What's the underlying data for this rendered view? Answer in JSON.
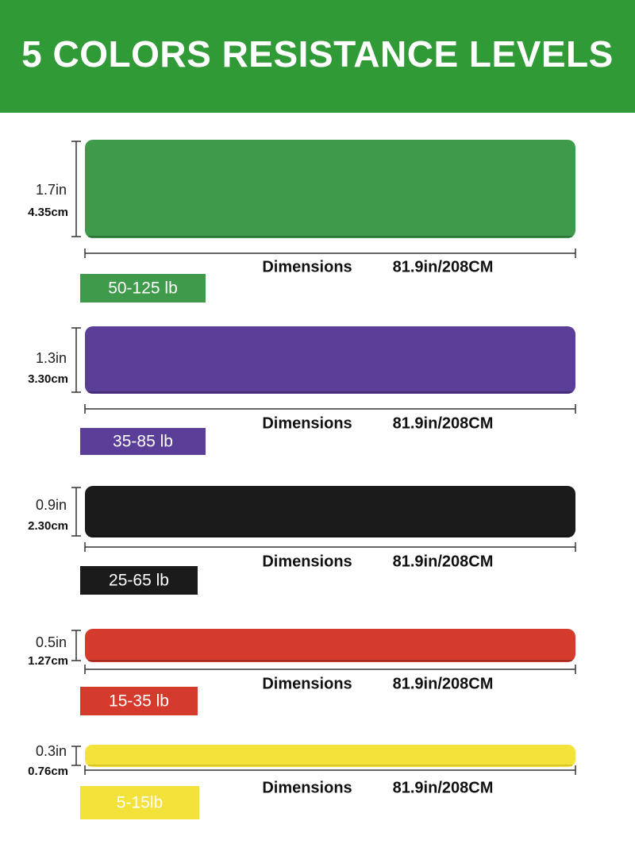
{
  "header": {
    "title": "5 COLORS RESISTANCE LEVELS"
  },
  "bands": [
    {
      "width_in": "1.7in",
      "width_cm": "4.35cm",
      "dimensions_label": "Dimensions",
      "dimensions_value": "81.9in/208CM",
      "resistance": "50-125 lb",
      "color": "#3f9a4b"
    },
    {
      "width_in": "1.3in",
      "width_cm": "3.30cm",
      "dimensions_label": "Dimensions",
      "dimensions_value": "81.9in/208CM",
      "resistance": "35-85 lb",
      "color": "#5a3e97"
    },
    {
      "width_in": "0.9in",
      "width_cm": "2.30cm",
      "dimensions_label": "Dimensions",
      "dimensions_value": "81.9in/208CM",
      "resistance": "25-65 lb",
      "color": "#1b1b1b"
    },
    {
      "width_in": "0.5in",
      "width_cm": "1.27cm",
      "dimensions_label": "Dimensions",
      "dimensions_value": "81.9in/208CM",
      "resistance": "15-35 lb",
      "color": "#d43b2d"
    },
    {
      "width_in": "0.3in",
      "width_cm": "0.76cm",
      "dimensions_label": "Dimensions",
      "dimensions_value": "81.9in/208CM",
      "resistance": "5-15lb",
      "color": "#f3e23a"
    }
  ]
}
